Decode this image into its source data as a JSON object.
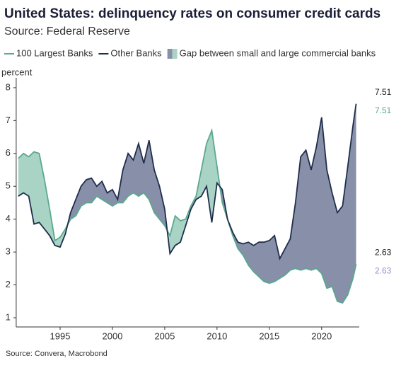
{
  "chart_data": {
    "type": "line",
    "title": "United States: delinquency rates on consumer credit cards",
    "subtitle": "Source: Federal Reserve",
    "y_label": "percent",
    "source": "Source: Convera, Macrobond",
    "x": [
      1991,
      1991.5,
      1992,
      1992.5,
      1993,
      1993.5,
      1994,
      1994.5,
      1995,
      1995.5,
      1996,
      1996.5,
      1997,
      1997.5,
      1998,
      1998.5,
      1999,
      1999.5,
      2000,
      2000.5,
      2001,
      2001.5,
      2002,
      2002.5,
      2003,
      2003.5,
      2004,
      2004.5,
      2005,
      2005.5,
      2006,
      2006.5,
      2007,
      2007.5,
      2008,
      2008.5,
      2009,
      2009.5,
      2010,
      2010.5,
      2011,
      2011.5,
      2012,
      2012.5,
      2013,
      2013.5,
      2014,
      2014.5,
      2015,
      2015.5,
      2016,
      2016.5,
      2017,
      2017.5,
      2018,
      2018.5,
      2019,
      2019.5,
      2020,
      2020.5,
      2021,
      2021.5,
      2022,
      2022.5,
      2023,
      2023.3
    ],
    "series": [
      {
        "name": "100 Largest Banks",
        "color": "#5aa88f",
        "values": [
          5.85,
          6.0,
          5.9,
          6.05,
          6.0,
          5.2,
          4.3,
          3.35,
          3.45,
          3.7,
          4.0,
          4.1,
          4.4,
          4.5,
          4.5,
          4.7,
          4.6,
          4.5,
          4.4,
          4.5,
          4.5,
          4.7,
          4.8,
          4.7,
          4.8,
          4.6,
          4.2,
          4.0,
          3.8,
          3.5,
          4.1,
          3.95,
          4.0,
          4.4,
          4.7,
          5.5,
          6.3,
          6.7,
          5.6,
          4.5,
          4.0,
          3.5,
          3.1,
          2.9,
          2.6,
          2.4,
          2.25,
          2.1,
          2.05,
          2.1,
          2.2,
          2.3,
          2.45,
          2.5,
          2.45,
          2.5,
          2.45,
          2.5,
          2.35,
          1.9,
          1.95,
          1.5,
          1.45,
          1.7,
          2.2,
          2.63
        ]
      },
      {
        "name": "Other Banks",
        "color": "#1f2d4d",
        "values": [
          4.7,
          4.8,
          4.7,
          3.85,
          3.9,
          3.7,
          3.5,
          3.2,
          3.15,
          3.55,
          4.2,
          4.6,
          5.0,
          5.2,
          5.25,
          5.0,
          5.15,
          4.8,
          4.9,
          4.6,
          5.5,
          6.0,
          5.8,
          6.3,
          5.7,
          6.4,
          5.5,
          5.0,
          4.3,
          2.95,
          3.2,
          3.3,
          3.8,
          4.3,
          4.6,
          4.7,
          5.0,
          3.9,
          5.1,
          4.9,
          4.0,
          3.6,
          3.3,
          3.25,
          3.3,
          3.2,
          3.3,
          3.3,
          3.35,
          3.5,
          2.8,
          3.1,
          3.4,
          4.5,
          5.9,
          6.1,
          5.5,
          6.2,
          7.1,
          5.5,
          4.8,
          4.2,
          4.4,
          5.6,
          6.85,
          7.51
        ]
      }
    ],
    "gap": {
      "name": "Gap between small and large commercial banks",
      "colors": [
        "#a9d4c5",
        "#8790a8"
      ]
    },
    "annotations": [
      {
        "text": "7.51",
        "color": "#1a1a1a"
      },
      {
        "text": "7.51",
        "color": "#5aa88f"
      },
      {
        "text": "2.63",
        "color": "#1a1a1a"
      },
      {
        "text": "2.63",
        "color": "#9a8fd0"
      }
    ],
    "xlim": [
      1990.8,
      2023.6
    ],
    "ylim": [
      0.72,
      8.3
    ],
    "xticks": [
      1995,
      2000,
      2005,
      2010,
      2015,
      2020
    ],
    "yticks": [
      1,
      2,
      3,
      4,
      5,
      6,
      7,
      8
    ]
  }
}
